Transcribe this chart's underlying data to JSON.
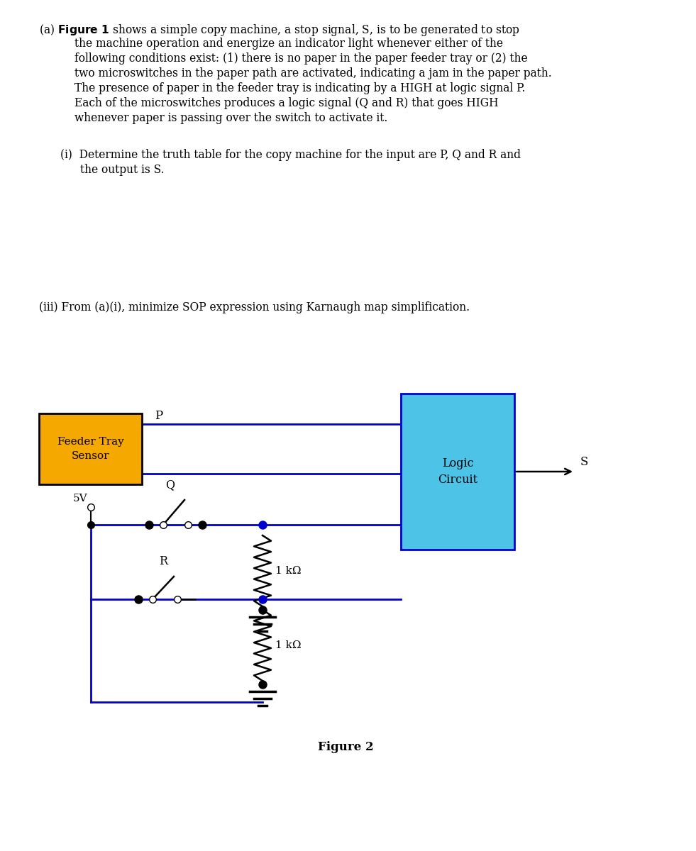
{
  "bg_color": "#ffffff",
  "text_color": "#000000",
  "blue_color": "#0000cc",
  "cyan_color": "#4dc3e8",
  "yellow_color": "#f5a800",
  "figure_caption": "Figure 2",
  "feeder_label": "Feeder Tray\nSensor",
  "logic_label": "Logic\nCircuit",
  "label_5V": "5V",
  "label_P": "P",
  "label_Q": "Q",
  "label_R": "R",
  "label_S": "S",
  "label_1k1": "1 kΩ",
  "label_1k2": "1 kΩ"
}
